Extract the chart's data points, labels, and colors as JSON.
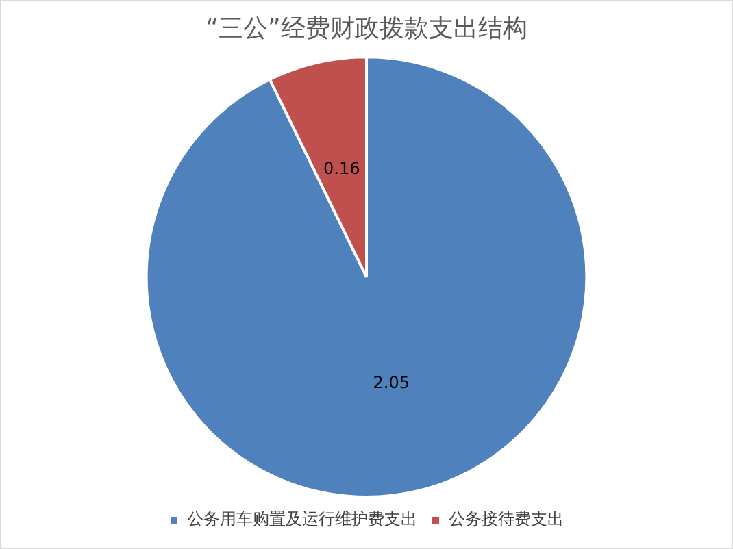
{
  "chart_data": {
    "type": "pie",
    "title": "“三公”经费财政拨款支出结构",
    "categories": [
      "公务用车购置及运行维护费支出",
      "公务接待费支出"
    ],
    "values": [
      2.05,
      0.16
    ],
    "colors": [
      "#4f81bd",
      "#c0504d"
    ],
    "data_labels": true,
    "legend": "bottom"
  }
}
